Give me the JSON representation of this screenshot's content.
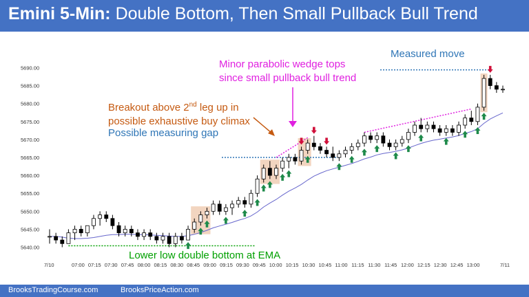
{
  "header": {
    "title_bold": "Emini 5-Min:",
    "title_rest": "Double Bottom, Then Small Pullback Bull Trend"
  },
  "footer": {
    "left": "BrooksTradingCourse.com",
    "right": "BrooksPriceAction.com"
  },
  "annotations": {
    "measured_move": "Measured move",
    "wedge_line1": "Minor parabolic wedge tops",
    "wedge_line2": "since small pullback bull trend",
    "breakout_line1a": "Breakout above 2",
    "breakout_line1sup": "nd",
    "breakout_line1b": " leg up in",
    "breakout_line2": "possible exhaustive buy climax",
    "gap_label": "Possible measuring gap",
    "double_bottom": "Lower low double bottom at EMA"
  },
  "colors": {
    "header_bg": "#4472c4",
    "annotation_blue": "#2e75b6",
    "annotation_orange": "#c55a11",
    "annotation_magenta": "#e020e0",
    "annotation_green": "#00a000",
    "ema": "#6666cc",
    "bull_arrow": "#1e8a4a",
    "bear_arrow": "#d0103a",
    "highlight": "#f2d5c0"
  },
  "chart_data": {
    "type": "candlestick",
    "y_ticks": [
      "5640.00",
      "5645.00",
      "5650.00",
      "5655.00",
      "5660.00",
      "5665.00",
      "5670.00",
      "5675.00",
      "5680.00",
      "5685.00",
      "5690.00"
    ],
    "ylim": [
      5638,
      5692
    ],
    "x_labels": [
      "7/10",
      "07:00",
      "07:15",
      "07:30",
      "07:45",
      "08:00",
      "08:15",
      "08:30",
      "08:45",
      "09:00",
      "09:15",
      "09:30",
      "09:45",
      "10:00",
      "10:15",
      "10:30",
      "10:45",
      "11:00",
      "11:15",
      "11:30",
      "11:45",
      "12:00",
      "12:15",
      "12:30",
      "12:45",
      "13:00",
      "7/11"
    ],
    "candles": [
      [
        5643,
        5645,
        5641,
        5643
      ],
      [
        5643,
        5644,
        5641,
        5642
      ],
      [
        5642,
        5643,
        5640,
        5641
      ],
      [
        5641,
        5645,
        5641,
        5644
      ],
      [
        5644,
        5646,
        5642,
        5645
      ],
      [
        5645,
        5646,
        5643,
        5644
      ],
      [
        5644,
        5646,
        5643,
        5646
      ],
      [
        5646,
        5649,
        5645,
        5648
      ],
      [
        5648,
        5650,
        5646,
        5649
      ],
      [
        5649,
        5650,
        5647,
        5648
      ],
      [
        5648,
        5649,
        5645,
        5646
      ],
      [
        5646,
        5647,
        5643,
        5644
      ],
      [
        5644,
        5646,
        5643,
        5645
      ],
      [
        5645,
        5646,
        5643,
        5644
      ],
      [
        5644,
        5645,
        5642,
        5643
      ],
      [
        5643,
        5645,
        5642,
        5644
      ],
      [
        5644,
        5645,
        5642,
        5643
      ],
      [
        5643,
        5644,
        5641,
        5642
      ],
      [
        5642,
        5644,
        5641,
        5643
      ],
      [
        5643,
        5644,
        5640,
        5641
      ],
      [
        5641,
        5644,
        5640,
        5643
      ],
      [
        5643,
        5644,
        5641,
        5642
      ],
      [
        5642,
        5646,
        5642,
        5645
      ],
      [
        5645,
        5648,
        5644,
        5647
      ],
      [
        5647,
        5650,
        5646,
        5649
      ],
      [
        5649,
        5651,
        5648,
        5650
      ],
      [
        5650,
        5653,
        5649,
        5652
      ],
      [
        5652,
        5653,
        5649,
        5650
      ],
      [
        5650,
        5652,
        5649,
        5651
      ],
      [
        5651,
        5653,
        5649,
        5652
      ],
      [
        5652,
        5654,
        5651,
        5653
      ],
      [
        5653,
        5654,
        5651,
        5652
      ],
      [
        5652,
        5656,
        5651,
        5655
      ],
      [
        5655,
        5660,
        5654,
        5659
      ],
      [
        5659,
        5663,
        5658,
        5662
      ],
      [
        5662,
        5664,
        5659,
        5660
      ],
      [
        5660,
        5663,
        5659,
        5662
      ],
      [
        5662,
        5665,
        5661,
        5664
      ],
      [
        5664,
        5666,
        5662,
        5665
      ],
      [
        5665,
        5666,
        5663,
        5664
      ],
      [
        5664,
        5668,
        5663,
        5667
      ],
      [
        5667,
        5670,
        5666,
        5669
      ],
      [
        5669,
        5671,
        5667,
        5668
      ],
      [
        5668,
        5669,
        5666,
        5667
      ],
      [
        5667,
        5668,
        5665,
        5666
      ],
      [
        5666,
        5668,
        5664,
        5665
      ],
      [
        5665,
        5667,
        5664,
        5666
      ],
      [
        5666,
        5668,
        5665,
        5667
      ],
      [
        5667,
        5669,
        5666,
        5668
      ],
      [
        5668,
        5670,
        5667,
        5669
      ],
      [
        5669,
        5672,
        5668,
        5671
      ],
      [
        5671,
        5672,
        5669,
        5670
      ],
      [
        5670,
        5672,
        5669,
        5671
      ],
      [
        5671,
        5672,
        5668,
        5669
      ],
      [
        5669,
        5670,
        5667,
        5668
      ],
      [
        5668,
        5670,
        5667,
        5669
      ],
      [
        5669,
        5671,
        5668,
        5670
      ],
      [
        5670,
        5673,
        5669,
        5672
      ],
      [
        5672,
        5675,
        5671,
        5674
      ],
      [
        5674,
        5676,
        5672,
        5673
      ],
      [
        5673,
        5675,
        5672,
        5674
      ],
      [
        5674,
        5675,
        5672,
        5673
      ],
      [
        5673,
        5674,
        5671,
        5672
      ],
      [
        5672,
        5674,
        5671,
        5673
      ],
      [
        5673,
        5674,
        5671,
        5672
      ],
      [
        5672,
        5675,
        5671,
        5674
      ],
      [
        5674,
        5677,
        5673,
        5676
      ],
      [
        5676,
        5678,
        5674,
        5675
      ],
      [
        5675,
        5680,
        5674,
        5679
      ],
      [
        5679,
        5688,
        5678,
        5687
      ],
      [
        5687,
        5688,
        5684,
        5685
      ],
      [
        5685,
        5686,
        5683,
        5684
      ],
      [
        5684,
        5685,
        5683,
        5684
      ]
    ],
    "ema": [
      5643,
      5643,
      5642.8,
      5642.5,
      5642.4,
      5642.4,
      5642.5,
      5642.7,
      5643,
      5643.3,
      5643.5,
      5643.5,
      5643.6,
      5643.6,
      5643.5,
      5643.5,
      5643.4,
      5643.3,
      5643.2,
      5643.1,
      5643,
      5643,
      5643.2,
      5643.6,
      5644.1,
      5644.7,
      5645.4,
      5645.9,
      5646.4,
      5646.9,
      5647.5,
      5648,
      5648.7,
      5649.8,
      5651.2,
      5652.3,
      5653.3,
      5654.5,
      5655.6,
      5656.5,
      5657.5,
      5658.7,
      5659.8,
      5660.6,
      5661.3,
      5661.8,
      5662.3,
      5662.8,
      5663.3,
      5663.9,
      5664.6,
      5665.1,
      5665.7,
      5666.1,
      5666.4,
      5666.7,
      5667.1,
      5667.6,
      5668.3,
      5668.9,
      5669.4,
      5669.8,
      5670.1,
      5670.4,
      5670.7,
      5671.1,
      5671.7,
      5672.2,
      5673,
      5674.5,
      5675.7,
      5676.6,
      5677.4
    ]
  }
}
